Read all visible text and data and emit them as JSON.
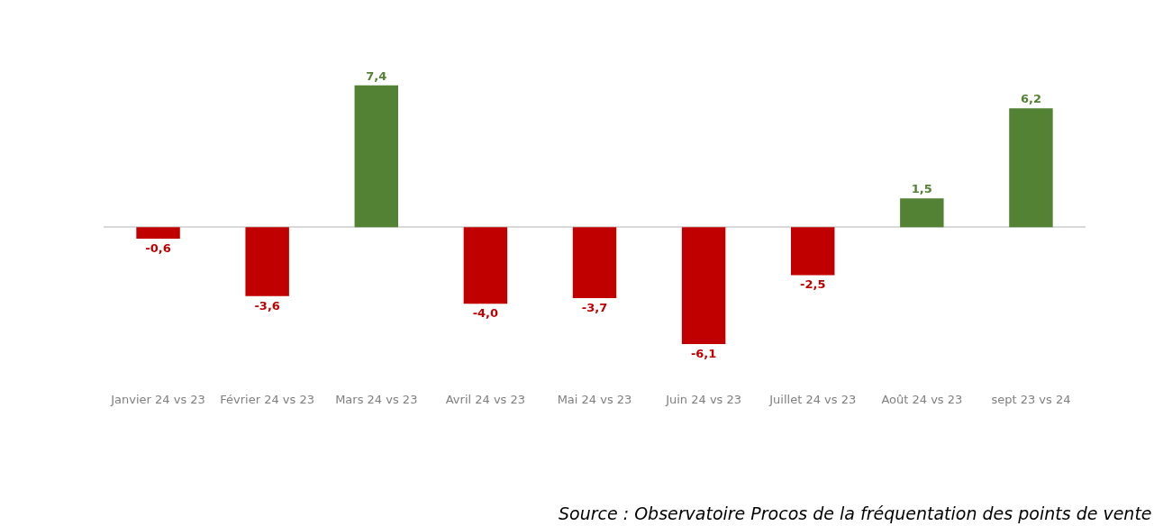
{
  "chart_data": {
    "type": "bar",
    "categories": [
      "Janvier 24 vs 23",
      "Février 24 vs 23",
      "Mars 24 vs 23",
      "Avril 24 vs 23",
      "Mai 24 vs 23",
      "Juin 24 vs 23",
      "Juillet 24 vs 23",
      "Août 24 vs 23",
      "sept 23 vs 24"
    ],
    "values": [
      -0.6,
      -3.6,
      7.4,
      -4.0,
      -3.7,
      -6.1,
      -2.5,
      1.5,
      6.2
    ],
    "value_labels": [
      "-0,6",
      "-3,6",
      "7,4",
      "-4,0",
      "-3,7",
      "-6,1",
      "-2,5",
      "1,5",
      "6,2"
    ],
    "colors": [
      "#c00000",
      "#c00000",
      "#548235",
      "#c00000",
      "#c00000",
      "#c00000",
      "#c00000",
      "#548235",
      "#548235"
    ],
    "annotations": [
      "Source : Observatoire Procos de la fréquentation des points de vente"
    ]
  }
}
